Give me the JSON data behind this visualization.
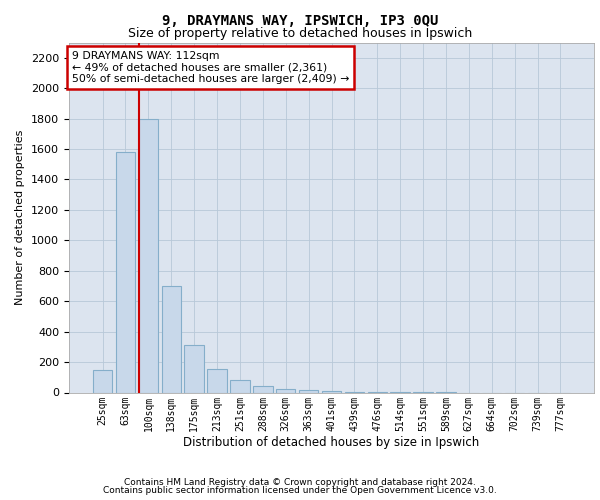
{
  "title1": "9, DRAYMANS WAY, IPSWICH, IP3 0QU",
  "title2": "Size of property relative to detached houses in Ipswich",
  "xlabel": "Distribution of detached houses by size in Ipswich",
  "ylabel": "Number of detached properties",
  "categories": [
    "25sqm",
    "63sqm",
    "100sqm",
    "138sqm",
    "175sqm",
    "213sqm",
    "251sqm",
    "288sqm",
    "326sqm",
    "363sqm",
    "401sqm",
    "439sqm",
    "476sqm",
    "514sqm",
    "551sqm",
    "589sqm",
    "627sqm",
    "664sqm",
    "702sqm",
    "739sqm",
    "777sqm"
  ],
  "values": [
    150,
    1580,
    1800,
    700,
    310,
    155,
    80,
    45,
    25,
    18,
    10,
    5,
    3,
    2,
    1,
    1,
    0,
    0,
    0,
    0,
    0
  ],
  "bar_color": "#c8d8ea",
  "bar_edge_color": "#85aeca",
  "vline_color": "#cc0000",
  "annotation_text": "9 DRAYMANS WAY: 112sqm\n← 49% of detached houses are smaller (2,361)\n50% of semi-detached houses are larger (2,409) →",
  "annotation_box_facecolor": "#ffffff",
  "annotation_box_edgecolor": "#cc0000",
  "ylim_max": 2300,
  "yticks": [
    0,
    200,
    400,
    600,
    800,
    1000,
    1200,
    1400,
    1600,
    1800,
    2000,
    2200
  ],
  "grid_color": "#b8c8d8",
  "plot_bg": "#dce4ef",
  "footer1": "Contains HM Land Registry data © Crown copyright and database right 2024.",
  "footer2": "Contains public sector information licensed under the Open Government Licence v3.0."
}
